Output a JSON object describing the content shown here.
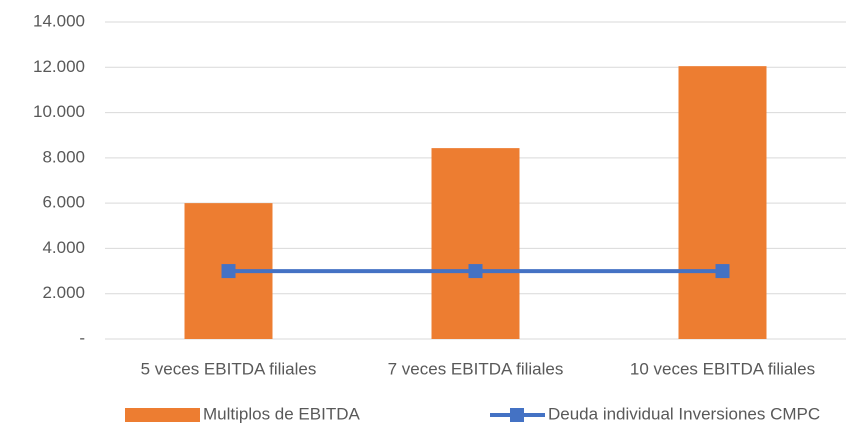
{
  "chart_data": {
    "type": "bar",
    "categories": [
      "5 veces EBITDA filiales",
      "7 veces EBITDA filiales",
      "10 veces EBITDA filiales"
    ],
    "series": [
      {
        "name": "Multiplos de EBITDA",
        "type": "bar",
        "color": "#ed7d31",
        "values": [
          6000,
          8430,
          12050
        ]
      },
      {
        "name": "Deuda individual Inversiones CMPC",
        "type": "line",
        "color": "#4472c4",
        "values": [
          3000,
          3000,
          3000
        ]
      }
    ],
    "ylim": [
      0,
      14000
    ],
    "yticks": [
      {
        "value": 0,
        "label": "-"
      },
      {
        "value": 2000,
        "label": "2.000"
      },
      {
        "value": 4000,
        "label": "4.000"
      },
      {
        "value": 6000,
        "label": "6.000"
      },
      {
        "value": 8000,
        "label": "8.000"
      },
      {
        "value": 10000,
        "label": "10.000"
      },
      {
        "value": 12000,
        "label": "12.000"
      },
      {
        "value": 14000,
        "label": "14.000"
      }
    ],
    "grid": true,
    "legend": "bottom"
  }
}
